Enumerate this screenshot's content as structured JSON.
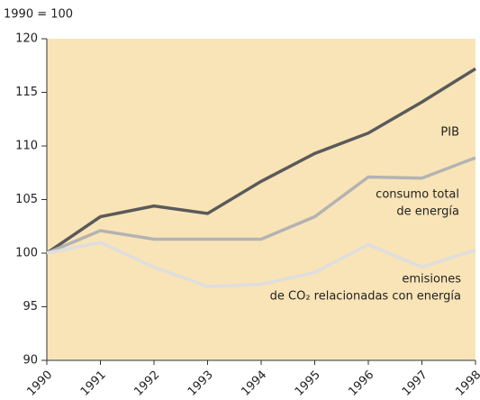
{
  "chart_data": {
    "type": "line",
    "subtitle": "1990 = 100",
    "x": [
      1990,
      1991,
      1992,
      1993,
      1994,
      1995,
      1996,
      1997,
      1998
    ],
    "xlim": [
      1990,
      1998
    ],
    "xticks": [
      1990,
      1991,
      1992,
      1993,
      1994,
      1995,
      1996,
      1997,
      1998
    ],
    "ylim": [
      90,
      120
    ],
    "yticks": [
      90,
      95,
      100,
      105,
      110,
      115,
      120
    ],
    "background": "#f9e4b7",
    "series": [
      {
        "name": [
          "PIB"
        ],
        "color": "#5a5a5a",
        "values": [
          100,
          103.4,
          104.4,
          103.7,
          106.7,
          109.3,
          111.2,
          114.1,
          117.2
        ]
      },
      {
        "name": [
          "consumo total",
          "de energía"
        ],
        "color": "#b3b3b3",
        "values": [
          100,
          102.1,
          101.3,
          101.3,
          101.3,
          103.4,
          107.1,
          107.0,
          108.9
        ]
      },
      {
        "name": [
          "emisiones",
          "de CO₂ relacionadas con energía"
        ],
        "color": "#dedede",
        "values": [
          100,
          101.0,
          98.7,
          96.9,
          97.1,
          98.2,
          100.8,
          98.7,
          100.3
        ]
      }
    ]
  }
}
